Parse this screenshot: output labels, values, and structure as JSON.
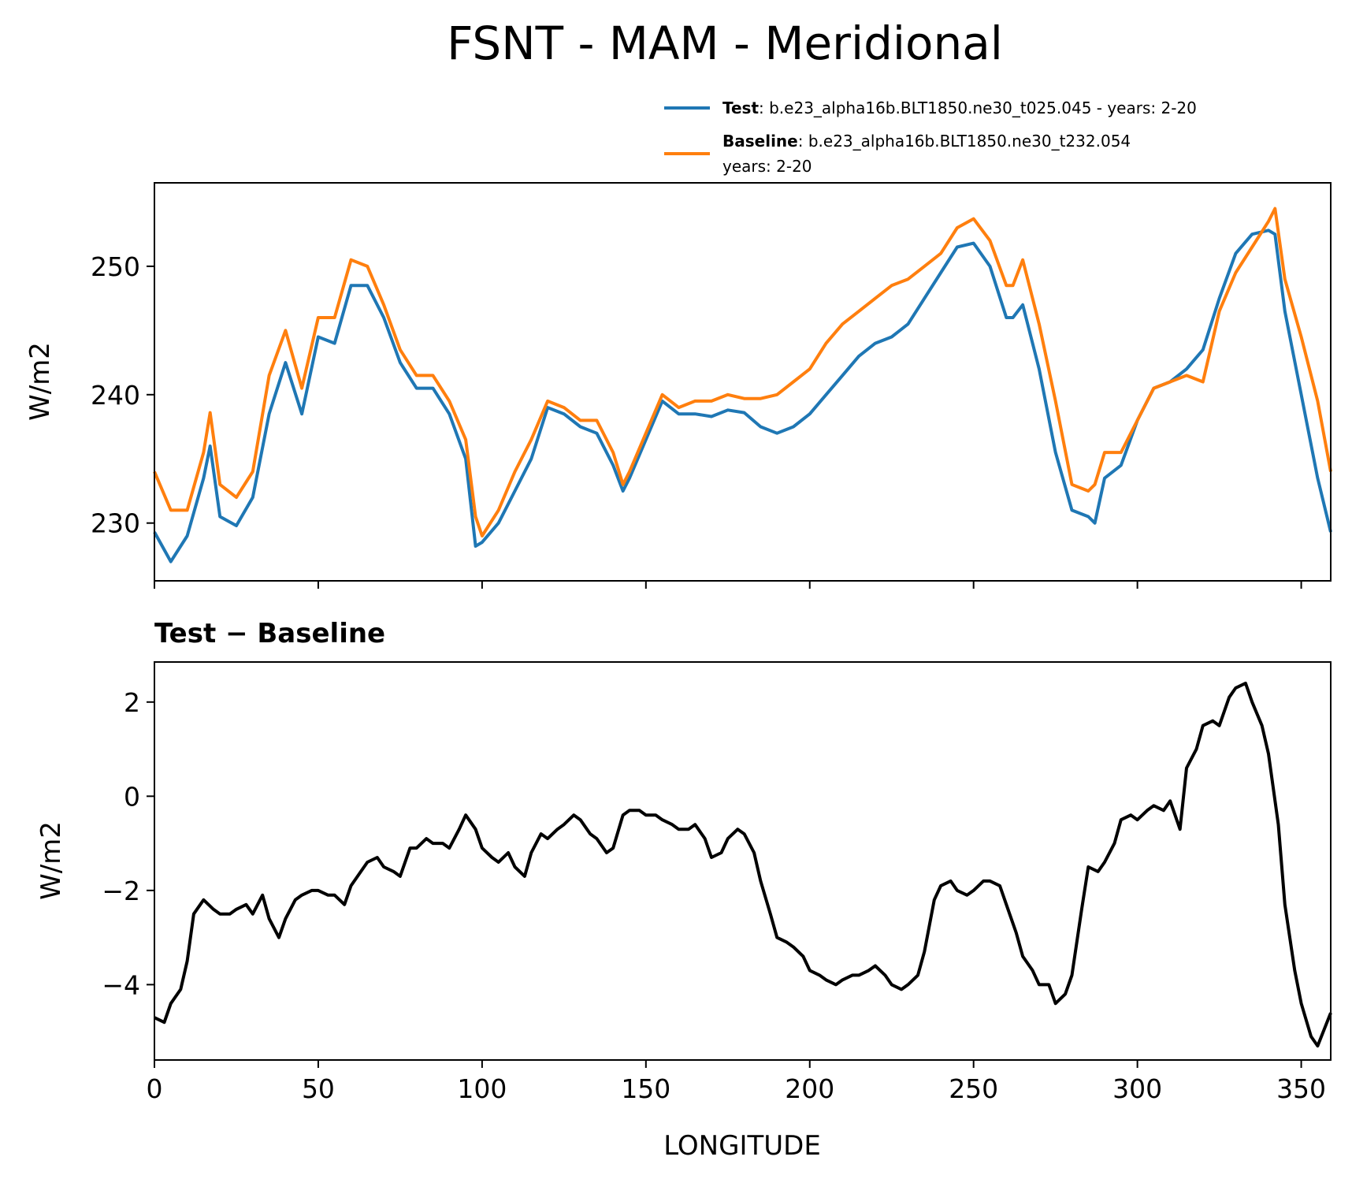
{
  "chart_data": [
    {
      "type": "line",
      "title": "FSNT - MAM - Meridional",
      "xlabel": "",
      "ylabel": "W/m2",
      "xlim": [
        0,
        359
      ],
      "ylim": [
        225.5,
        256.5
      ],
      "yticks": [
        230,
        240,
        250
      ],
      "xticks": [
        0,
        50,
        100,
        150,
        200,
        250,
        300,
        350
      ],
      "x_tick_labels_visible": false,
      "legend_position": "top-right",
      "legend": [
        {
          "label_bold": "Test",
          "label_rest": ": b.e23_alpha16b.BLT1850.ne30_t025.045 - years: 2-20",
          "color": "#1f77b4"
        },
        {
          "label_bold": "Baseline",
          "label_rest": ": b.e23_alpha16b.BLT1850.ne30_t232.054",
          "label_line2": "years: 2-20",
          "color": "#ff7f0e"
        }
      ],
      "x": [
        0,
        5,
        10,
        15,
        17,
        20,
        25,
        30,
        35,
        40,
        45,
        50,
        55,
        60,
        65,
        70,
        75,
        80,
        85,
        90,
        95,
        98,
        100,
        105,
        110,
        115,
        120,
        125,
        130,
        135,
        140,
        143,
        145,
        150,
        155,
        160,
        165,
        170,
        175,
        180,
        185,
        190,
        195,
        200,
        205,
        210,
        215,
        220,
        225,
        230,
        235,
        240,
        245,
        250,
        255,
        260,
        262,
        265,
        270,
        275,
        280,
        285,
        287,
        290,
        295,
        300,
        305,
        310,
        315,
        320,
        325,
        330,
        335,
        340,
        342,
        345,
        350,
        355,
        359
      ],
      "series": [
        {
          "name": "Test",
          "color": "#1f77b4",
          "values": [
            229.3,
            227.0,
            229.0,
            233.5,
            236.0,
            230.5,
            229.8,
            232.0,
            238.5,
            242.5,
            238.5,
            244.5,
            244.0,
            248.5,
            248.5,
            246.0,
            242.5,
            240.5,
            240.5,
            238.5,
            235.0,
            228.2,
            228.5,
            230.0,
            232.5,
            235.0,
            239.0,
            238.5,
            237.5,
            237.0,
            234.5,
            232.5,
            233.5,
            236.5,
            239.5,
            238.5,
            238.5,
            238.3,
            238.8,
            238.6,
            237.5,
            237.0,
            237.5,
            238.5,
            240.0,
            241.5,
            243.0,
            244.0,
            244.5,
            245.5,
            247.5,
            249.5,
            251.5,
            251.8,
            250.0,
            246.0,
            246.0,
            247.0,
            242.0,
            235.5,
            231.0,
            230.5,
            230.0,
            233.5,
            234.5,
            238.0,
            240.5,
            241.0,
            242.0,
            243.5,
            247.5,
            251.0,
            252.5,
            252.8,
            252.5,
            246.5,
            240.0,
            233.5,
            229.3
          ]
        },
        {
          "name": "Baseline",
          "color": "#ff7f0e",
          "values": [
            234.0,
            231.0,
            231.0,
            235.5,
            238.6,
            233.0,
            232.0,
            234.0,
            241.5,
            245.0,
            240.5,
            246.0,
            246.0,
            250.5,
            250.0,
            247.0,
            243.5,
            241.5,
            241.5,
            239.5,
            236.5,
            230.5,
            229.0,
            231.0,
            234.0,
            236.5,
            239.5,
            239.0,
            238.0,
            238.0,
            235.5,
            233.0,
            234.0,
            237.0,
            240.0,
            239.0,
            239.5,
            239.5,
            240.0,
            239.7,
            239.7,
            240.0,
            241.0,
            242.0,
            244.0,
            245.5,
            246.5,
            247.5,
            248.5,
            249.0,
            250.0,
            251.0,
            253.0,
            253.7,
            252.0,
            248.5,
            248.5,
            250.5,
            245.5,
            239.5,
            233.0,
            232.5,
            233.0,
            235.5,
            235.5,
            238.0,
            240.5,
            241.0,
            241.5,
            241.0,
            246.5,
            249.5,
            251.5,
            253.5,
            254.5,
            249.0,
            244.5,
            239.5,
            234.0
          ]
        }
      ]
    },
    {
      "type": "line",
      "title": "Test − Baseline",
      "xlabel": "LONGITUDE",
      "ylabel": "W/m2",
      "xlim": [
        0,
        359
      ],
      "ylim": [
        -5.6,
        2.85
      ],
      "yticks": [
        -4,
        -2,
        0,
        2
      ],
      "ytick_labels": [
        "−4",
        "−2",
        "0",
        "2"
      ],
      "xticks": [
        0,
        50,
        100,
        150,
        200,
        250,
        300,
        350
      ],
      "x": [
        0,
        3,
        5,
        8,
        10,
        12,
        15,
        18,
        20,
        23,
        25,
        28,
        30,
        33,
        35,
        38,
        40,
        43,
        45,
        48,
        50,
        53,
        55,
        58,
        60,
        63,
        65,
        68,
        70,
        73,
        75,
        78,
        80,
        83,
        85,
        88,
        90,
        93,
        95,
        98,
        100,
        103,
        105,
        108,
        110,
        113,
        115,
        118,
        120,
        123,
        125,
        128,
        130,
        133,
        135,
        138,
        140,
        143,
        145,
        148,
        150,
        153,
        155,
        158,
        160,
        163,
        165,
        168,
        170,
        173,
        175,
        178,
        180,
        183,
        185,
        188,
        190,
        193,
        195,
        198,
        200,
        203,
        205,
        208,
        210,
        213,
        215,
        218,
        220,
        223,
        225,
        228,
        230,
        233,
        235,
        238,
        240,
        243,
        245,
        248,
        250,
        253,
        255,
        258,
        260,
        263,
        265,
        268,
        270,
        273,
        275,
        278,
        280,
        283,
        285,
        288,
        290,
        293,
        295,
        298,
        300,
        303,
        305,
        308,
        310,
        313,
        315,
        318,
        320,
        323,
        325,
        328,
        330,
        333,
        335,
        338,
        340,
        343,
        345,
        348,
        350,
        353,
        355,
        359
      ],
      "series": [
        {
          "name": "",
          "color": "#000000",
          "values": [
            -4.7,
            -4.8,
            -4.4,
            -4.1,
            -3.5,
            -2.5,
            -2.2,
            -2.4,
            -2.5,
            -2.5,
            -2.4,
            -2.3,
            -2.5,
            -2.1,
            -2.6,
            -3.0,
            -2.6,
            -2.2,
            -2.1,
            -2.0,
            -2.0,
            -2.1,
            -2.1,
            -2.3,
            -1.9,
            -1.6,
            -1.4,
            -1.3,
            -1.5,
            -1.6,
            -1.7,
            -1.1,
            -1.1,
            -0.9,
            -1.0,
            -1.0,
            -1.1,
            -0.7,
            -0.4,
            -0.7,
            -1.1,
            -1.3,
            -1.4,
            -1.2,
            -1.5,
            -1.7,
            -1.2,
            -0.8,
            -0.9,
            -0.7,
            -0.6,
            -0.4,
            -0.5,
            -0.8,
            -0.9,
            -1.2,
            -1.1,
            -0.4,
            -0.3,
            -0.3,
            -0.4,
            -0.4,
            -0.5,
            -0.6,
            -0.7,
            -0.7,
            -0.6,
            -0.9,
            -1.3,
            -1.2,
            -0.9,
            -0.7,
            -0.8,
            -1.2,
            -1.8,
            -2.5,
            -3.0,
            -3.1,
            -3.2,
            -3.4,
            -3.7,
            -3.8,
            -3.9,
            -4.0,
            -3.9,
            -3.8,
            -3.8,
            -3.7,
            -3.6,
            -3.8,
            -4.0,
            -4.1,
            -4.0,
            -3.8,
            -3.3,
            -2.2,
            -1.9,
            -1.8,
            -2.0,
            -2.1,
            -2.0,
            -1.8,
            -1.8,
            -1.9,
            -2.3,
            -2.9,
            -3.4,
            -3.7,
            -4.0,
            -4.0,
            -4.4,
            -4.2,
            -3.8,
            -2.4,
            -1.5,
            -1.6,
            -1.4,
            -1.0,
            -0.5,
            -0.4,
            -0.5,
            -0.3,
            -0.2,
            -0.3,
            -0.1,
            -0.7,
            0.6,
            1.0,
            1.5,
            1.6,
            1.5,
            2.1,
            2.3,
            2.4,
            2.0,
            1.5,
            0.9,
            -0.6,
            -2.3,
            -3.7,
            -4.4,
            -5.1,
            -5.3,
            -4.6
          ]
        }
      ]
    }
  ]
}
